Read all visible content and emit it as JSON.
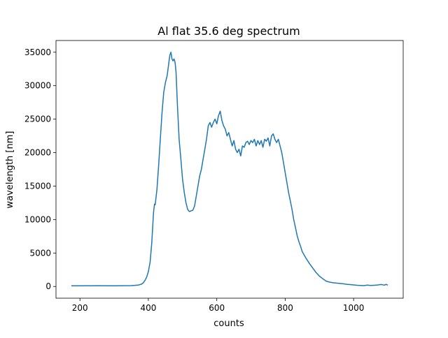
{
  "chart_data": {
    "type": "line",
    "title": "Al flat 35.6 deg spectrum",
    "xlabel": "counts",
    "ylabel": "wavelength [nm]",
    "xlim": [
      130,
      1145
    ],
    "ylim": [
      -1750,
      36750
    ],
    "xticks": [
      200,
      400,
      600,
      800,
      1000
    ],
    "yticks": [
      0,
      5000,
      10000,
      15000,
      20000,
      25000,
      30000,
      35000
    ],
    "grid": false,
    "line_color": "#1f77b4",
    "series": [
      {
        "x": [
          175,
          200,
          250,
          300,
          350,
          370,
          380,
          385,
          390,
          395,
          400,
          405,
          410,
          415,
          418,
          420,
          425,
          430,
          435,
          440,
          445,
          450,
          455,
          460,
          463,
          466,
          469,
          472,
          475,
          478,
          481,
          485,
          490,
          495,
          500,
          505,
          510,
          515,
          520,
          525,
          530,
          535,
          540,
          545,
          550,
          555,
          560,
          565,
          570,
          575,
          580,
          585,
          590,
          595,
          600,
          605,
          610,
          615,
          620,
          625,
          630,
          635,
          640,
          645,
          650,
          655,
          660,
          665,
          670,
          675,
          680,
          685,
          690,
          695,
          700,
          705,
          710,
          715,
          720,
          725,
          730,
          735,
          740,
          745,
          750,
          755,
          760,
          765,
          770,
          775,
          780,
          785,
          790,
          795,
          800,
          805,
          810,
          815,
          820,
          825,
          830,
          835,
          840,
          845,
          850,
          860,
          870,
          880,
          890,
          900,
          910,
          920,
          930,
          940,
          950,
          960,
          970,
          980,
          990,
          1000,
          1010,
          1020,
          1030,
          1040,
          1050,
          1060,
          1070,
          1080,
          1085,
          1090,
          1095,
          1100
        ],
        "y": [
          100,
          100,
          120,
          110,
          130,
          200,
          350,
          550,
          900,
          1400,
          2200,
          3600,
          6500,
          11000,
          12300,
          12200,
          14500,
          18000,
          22000,
          26000,
          29000,
          30500,
          31500,
          33500,
          34600,
          35000,
          34000,
          33700,
          34000,
          33500,
          32000,
          27000,
          22000,
          19000,
          16000,
          14000,
          12500,
          11500,
          11200,
          11300,
          11400,
          12000,
          13500,
          15000,
          16500,
          17500,
          19000,
          20500,
          22000,
          24000,
          24500,
          23800,
          24500,
          25000,
          24300,
          25500,
          26200,
          24800,
          24000,
          23500,
          22500,
          23000,
          22000,
          21000,
          21800,
          20500,
          20000,
          20500,
          19500,
          21000,
          20800,
          21500,
          21700,
          21200,
          21800,
          21500,
          22000,
          21000,
          21800,
          21200,
          21800,
          20800,
          22000,
          21700,
          22200,
          21000,
          22500,
          22800,
          22000,
          21500,
          22000,
          21000,
          20000,
          18500,
          17000,
          15500,
          14000,
          12800,
          11500,
          10000,
          8800,
          7600,
          6700,
          6000,
          5200,
          4300,
          3500,
          2800,
          2100,
          1550,
          1150,
          800,
          650,
          560,
          500,
          450,
          400,
          330,
          280,
          230,
          180,
          150,
          130,
          200,
          150,
          180,
          220,
          300,
          250,
          200,
          320,
          200
        ]
      }
    ]
  }
}
